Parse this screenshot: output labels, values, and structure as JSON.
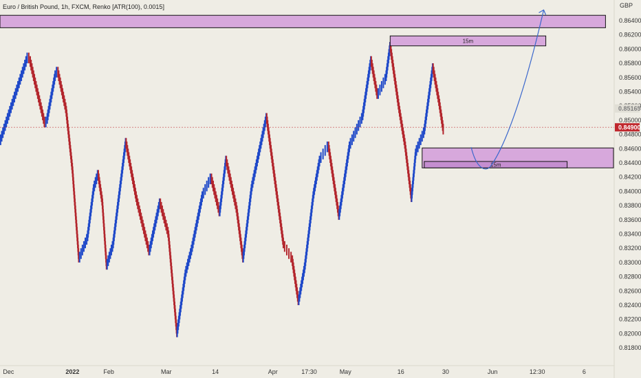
{
  "title": "Euro / British Pound, 1h, FXCM, Renko [ATR(100), 0.0015]",
  "currency": "GBP",
  "colors": {
    "background": "#efede5",
    "up": "#1f49c9",
    "down": "#b3262d",
    "zone_fill": "#d7a8dc",
    "zone_stroke": "#111111",
    "projection": "#3a67cc",
    "current_price": "#c0272d",
    "ghost_price": "#7d7d7d"
  },
  "current_price_label": "0.84900",
  "ghost_price_label": "0.85165",
  "zones": [
    {
      "label": "",
      "y_top": 0.86475,
      "y_bottom": 0.863,
      "x_from": 0,
      "x_to": 142
    },
    {
      "label": "15m",
      "y_top": 0.86185,
      "y_bottom": 0.86045,
      "x_from": 91.5,
      "x_to": 128
    },
    {
      "label": "",
      "y_top": 0.8461,
      "y_bottom": 0.8433,
      "x_from": 99,
      "x_to": 145
    },
    {
      "label": "15m",
      "y_top": 0.8442,
      "y_bottom": 0.8433,
      "x_from": 99.5,
      "x_to": 133
    }
  ],
  "projection_path": [
    [
      110.5,
      0.8462
    ],
    [
      115,
      0.8435
    ],
    [
      118.5,
      0.8443
    ],
    [
      127.5,
      0.8655
    ]
  ],
  "chart_data": {
    "type": "renko",
    "title": "Euro / British Pound, 1h, FXCM, Renko [ATR(100), 0.0015]",
    "xlabel": "",
    "ylabel": "",
    "ylim": [
      0.8172,
      0.866
    ],
    "x_ticks": [
      {
        "label": "Dec",
        "x": 2
      },
      {
        "label": "2022",
        "x": 17,
        "bold": true
      },
      {
        "label": "Feb",
        "x": 25.5
      },
      {
        "label": "Mar",
        "x": 39
      },
      {
        "label": "14",
        "x": 50.5
      },
      {
        "label": "Apr",
        "x": 64
      },
      {
        "label": "17:30",
        "x": 72.5
      },
      {
        "label": "May",
        "x": 81
      },
      {
        "label": "16",
        "x": 94
      },
      {
        "label": "30",
        "x": 104.5
      },
      {
        "label": "Jun",
        "x": 115.5
      },
      {
        "label": "12:30",
        "x": 126
      },
      {
        "label": "6",
        "x": 137
      }
    ],
    "y_ticks": [
      "0.81800",
      "0.82000",
      "0.82200",
      "0.82400",
      "0.82600",
      "0.82800",
      "0.83000",
      "0.83200",
      "0.83400",
      "0.83600",
      "0.83800",
      "0.84000",
      "0.84200",
      "0.84400",
      "0.84600",
      "0.84800",
      "0.85000",
      "0.85200",
      "0.85400",
      "0.85600",
      "0.85800",
      "0.86000",
      "0.86200",
      "0.86400"
    ],
    "box_size": 0.0015,
    "price_path": [
      {
        "x": 0,
        "close": 0.8475
      },
      {
        "x": 6.5,
        "close": 0.8595
      },
      {
        "x": 7,
        "close": 0.859
      },
      {
        "x": 10.5,
        "close": 0.85
      },
      {
        "x": 11,
        "close": 0.8505
      },
      {
        "x": 13,
        "close": 0.857
      },
      {
        "x": 13.5,
        "close": 0.8575
      },
      {
        "x": 15.5,
        "close": 0.852
      },
      {
        "x": 17,
        "close": 0.8435
      },
      {
        "x": 18.5,
        "close": 0.831
      },
      {
        "x": 20.5,
        "close": 0.834
      },
      {
        "x": 22,
        "close": 0.841
      },
      {
        "x": 23,
        "close": 0.843
      },
      {
        "x": 24,
        "close": 0.839
      },
      {
        "x": 25,
        "close": 0.83
      },
      {
        "x": 26.5,
        "close": 0.833
      },
      {
        "x": 29.5,
        "close": 0.8475
      },
      {
        "x": 32,
        "close": 0.8395
      },
      {
        "x": 35,
        "close": 0.832
      },
      {
        "x": 37.5,
        "close": 0.839
      },
      {
        "x": 39.5,
        "close": 0.8345
      },
      {
        "x": 41.5,
        "close": 0.8205
      },
      {
        "x": 43.5,
        "close": 0.829
      },
      {
        "x": 45,
        "close": 0.8325
      },
      {
        "x": 47.5,
        "close": 0.84
      },
      {
        "x": 49.5,
        "close": 0.8425
      },
      {
        "x": 51.5,
        "close": 0.8375
      },
      {
        "x": 53,
        "close": 0.845
      },
      {
        "x": 55.5,
        "close": 0.838
      },
      {
        "x": 57,
        "close": 0.831
      },
      {
        "x": 59,
        "close": 0.841
      },
      {
        "x": 62.5,
        "close": 0.851
      },
      {
        "x": 64.5,
        "close": 0.842
      },
      {
        "x": 66.5,
        "close": 0.833
      },
      {
        "x": 68.5,
        "close": 0.831
      },
      {
        "x": 70,
        "close": 0.825
      },
      {
        "x": 71.5,
        "close": 0.83
      },
      {
        "x": 73.5,
        "close": 0.84
      },
      {
        "x": 75,
        "close": 0.845
      },
      {
        "x": 77,
        "close": 0.847
      },
      {
        "x": 79.5,
        "close": 0.837
      },
      {
        "x": 82,
        "close": 0.847
      },
      {
        "x": 85,
        "close": 0.851
      },
      {
        "x": 87,
        "close": 0.859
      },
      {
        "x": 88.5,
        "close": 0.854
      },
      {
        "x": 90.5,
        "close": 0.8565
      },
      {
        "x": 91.5,
        "close": 0.861
      },
      {
        "x": 93.5,
        "close": 0.8525
      },
      {
        "x": 95,
        "close": 0.847
      },
      {
        "x": 96.5,
        "close": 0.8395
      },
      {
        "x": 97.5,
        "close": 0.846
      },
      {
        "x": 99.5,
        "close": 0.849
      },
      {
        "x": 101.5,
        "close": 0.858
      },
      {
        "x": 103,
        "close": 0.853
      },
      {
        "x": 104,
        "close": 0.849
      }
    ]
  }
}
